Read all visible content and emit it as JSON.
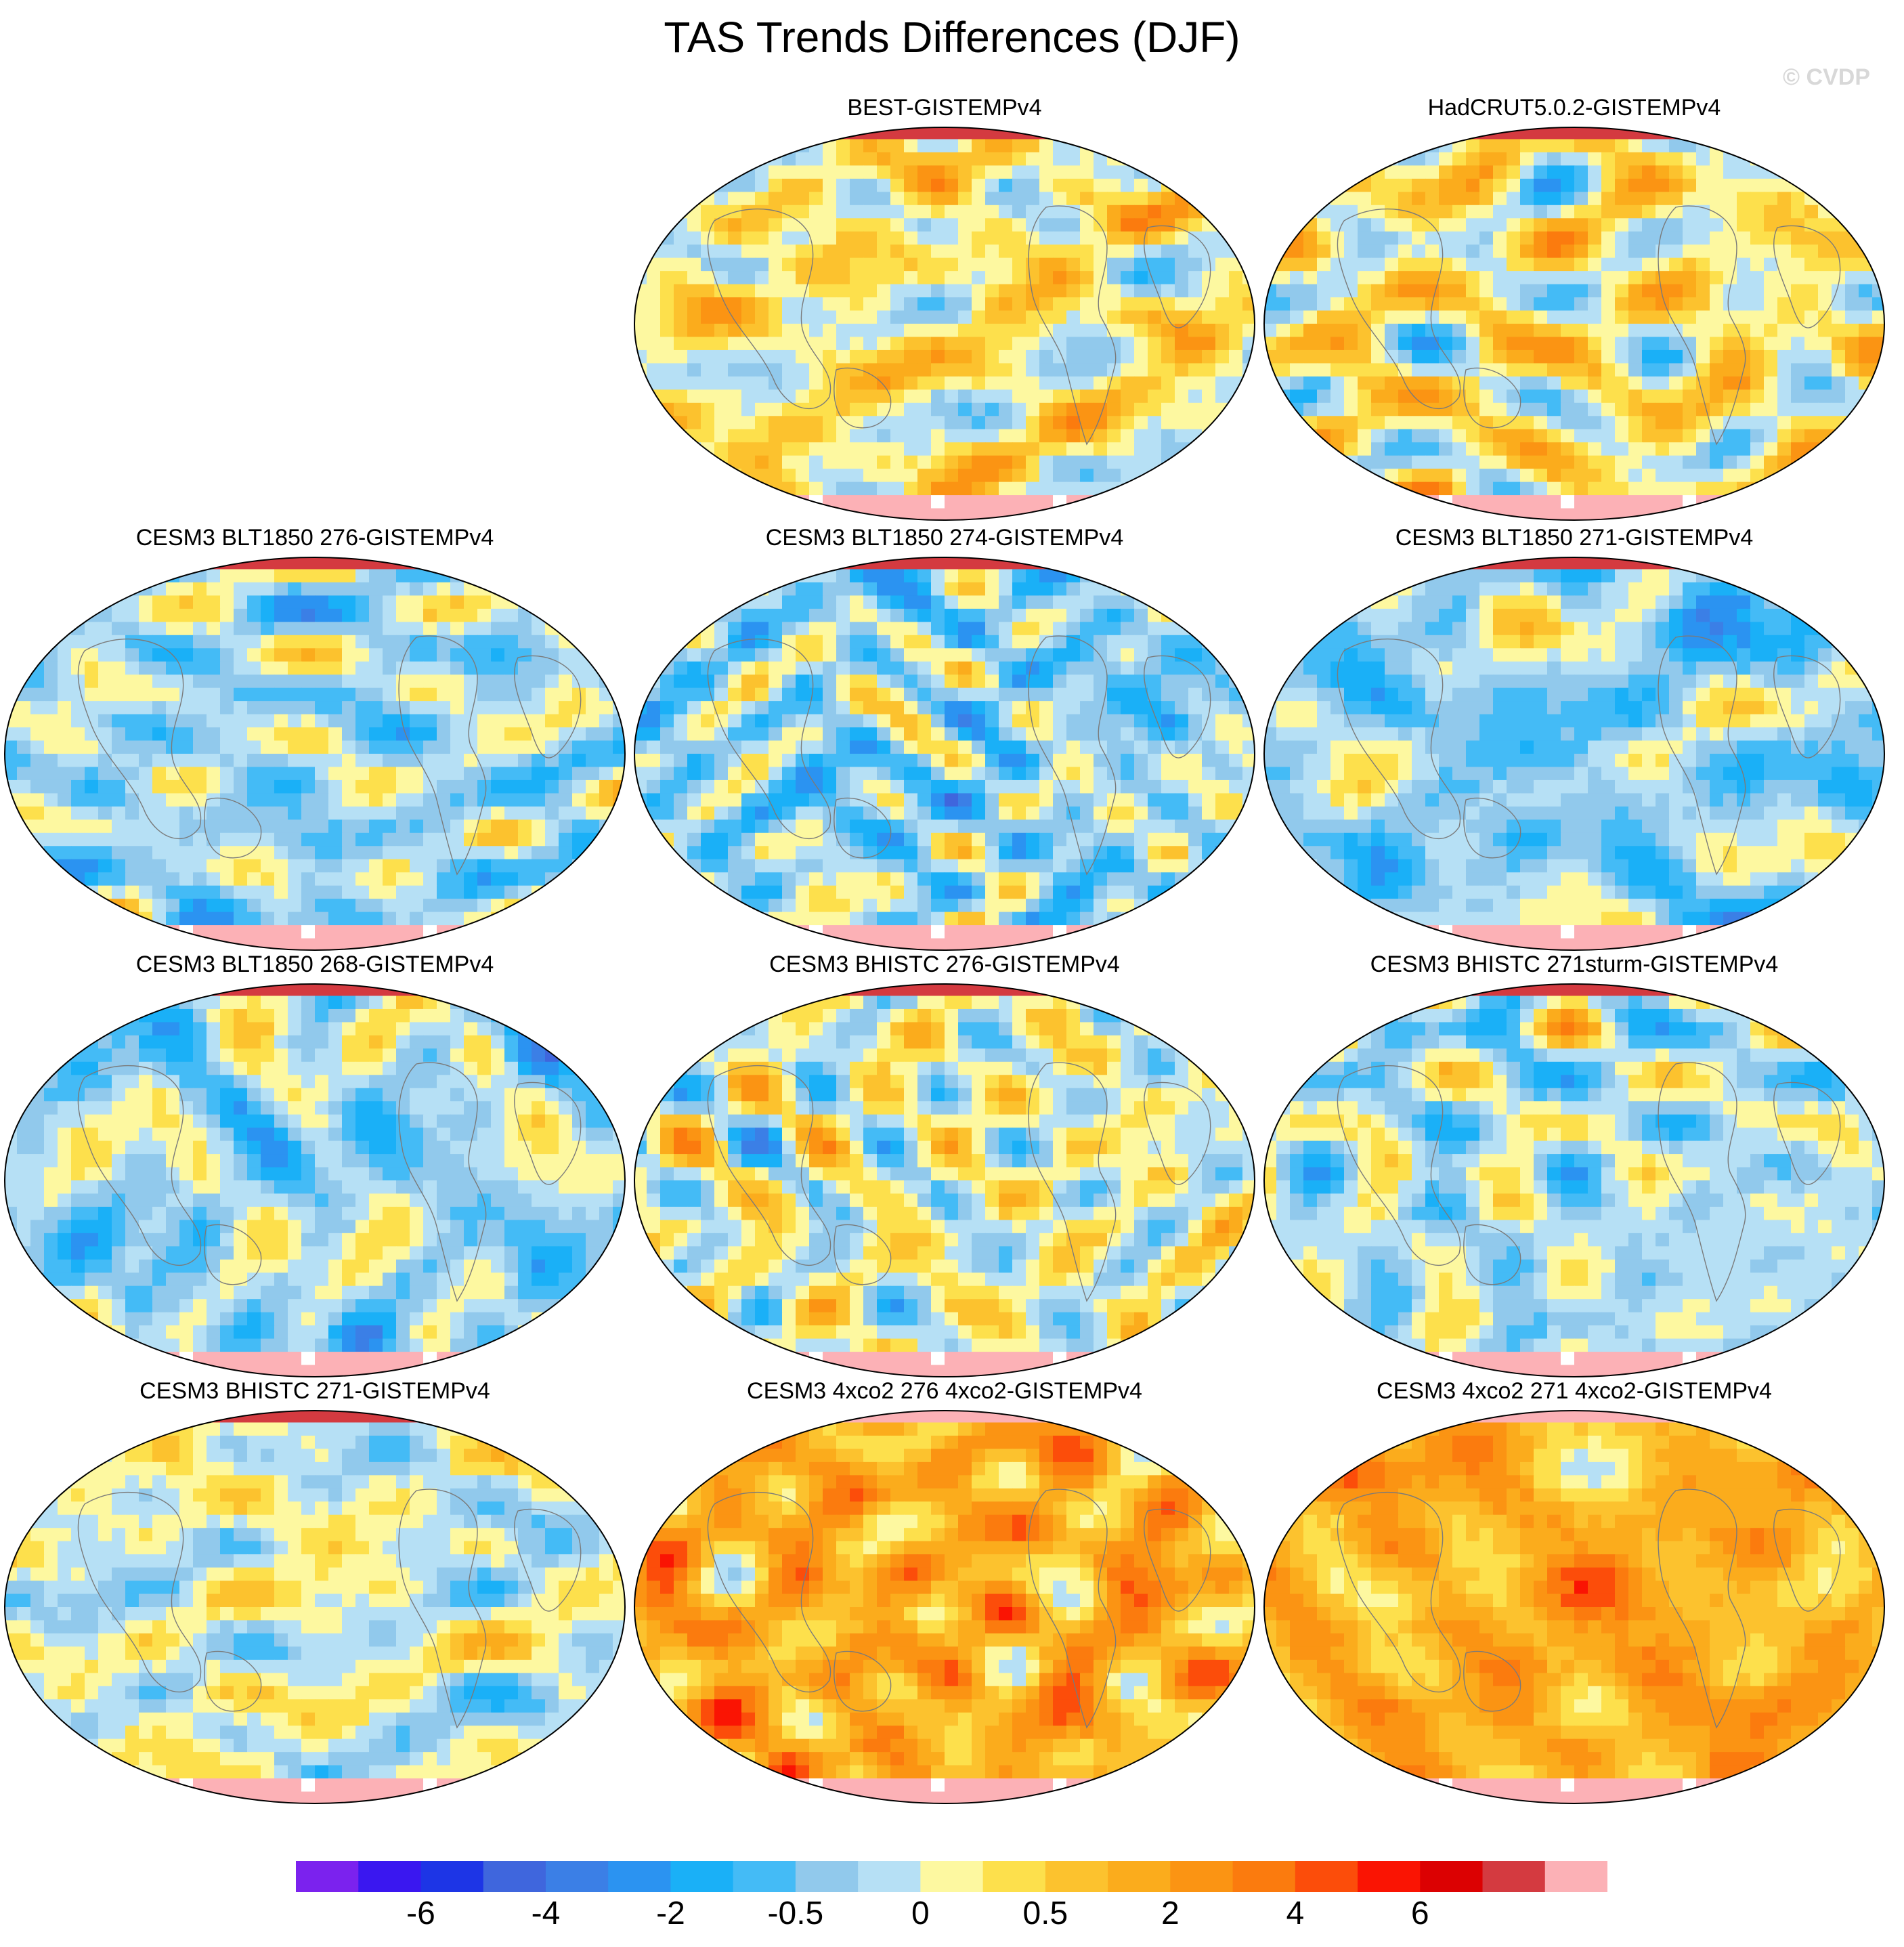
{
  "figure": {
    "title": "TAS Trends Differences (DJF)",
    "watermark": "© CVDP"
  },
  "palette": {
    "levels": [
      "#7b22ee",
      "#3a17f0",
      "#1d35e6",
      "#3f66dd",
      "#3b7fe6",
      "#2b93f1",
      "#1ab0f7",
      "#44bbf6",
      "#91c9ec",
      "#b6e0f5",
      "#fdf8a0",
      "#fde04c",
      "#fcc22e",
      "#fbac1c",
      "#fb9413",
      "#fb7b0e",
      "#fc4d0a",
      "#fa1403",
      "#dc0102",
      "#d43a40",
      "#fcb1b6"
    ],
    "labels": [
      {
        "index": 2,
        "text": "-6"
      },
      {
        "index": 4,
        "text": "-4"
      },
      {
        "index": 6,
        "text": "-2"
      },
      {
        "index": 8,
        "text": "-0.5"
      },
      {
        "index": 10,
        "text": "0"
      },
      {
        "index": 12,
        "text": "0.5"
      },
      {
        "index": 14,
        "text": "2"
      },
      {
        "index": 16,
        "text": "4"
      },
      {
        "index": 18,
        "text": "6"
      }
    ]
  },
  "panels": [
    {
      "title": "BEST-GISTEMPv4",
      "tone": 0.9,
      "seed": 11,
      "slot": "r0c1"
    },
    {
      "title": "HadCRUT5.0.2-GISTEMPv4",
      "tone": 0.9,
      "seed": 23,
      "slot": "r0c2"
    },
    {
      "title": "CESM3 BLT1850 276-GISTEMPv4",
      "tone": -0.9,
      "seed": 37,
      "slot": "r1c0"
    },
    {
      "title": "CESM3 BLT1850 274-GISTEMPv4",
      "tone": -1.2,
      "seed": 41,
      "slot": "r1c1"
    },
    {
      "title": "CESM3 BLT1850 271-GISTEMPv4",
      "tone": -1.3,
      "seed": 53,
      "slot": "r1c2"
    },
    {
      "title": "CESM3 BLT1850 268-GISTEMPv4",
      "tone": -1.0,
      "seed": 61,
      "slot": "r2c0"
    },
    {
      "title": "CESM3 BHISTC 276-GISTEMPv4",
      "tone": 0.2,
      "seed": 73,
      "slot": "r2c1"
    },
    {
      "title": "CESM3 BHISTC 271sturm-GISTEMPv4",
      "tone": -0.6,
      "seed": 89,
      "slot": "r2c2"
    },
    {
      "title": "CESM3 BHISTC 271-GISTEMPv4",
      "tone": 0.0,
      "seed": 97,
      "slot": "r3c0"
    },
    {
      "title": "CESM3 4xco2 276 4xco2-GISTEMPv4",
      "tone": 3.3,
      "seed": 101,
      "slot": "r3c1"
    },
    {
      "title": "CESM3 4xco2 271 4xco2-GISTEMPv4",
      "tone": 3.3,
      "seed": 113,
      "slot": "r3c2"
    }
  ]
}
